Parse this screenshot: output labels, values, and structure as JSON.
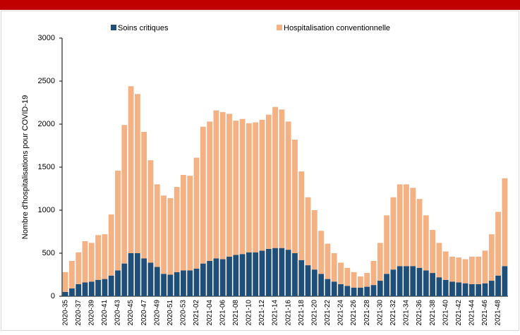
{
  "chart_data": {
    "type": "stacked_bar",
    "y_label": "Nombre d'hospitalisations pour COVID-19",
    "categories": [
      "2020-35",
      null,
      "2020-37",
      null,
      "2020-39",
      null,
      "2020-41",
      null,
      "2020-43",
      null,
      "2020-45",
      null,
      "2020-47",
      null,
      "2020-49",
      null,
      "2020-51",
      null,
      "2020-53",
      null,
      "2021-02",
      null,
      "2021-04",
      null,
      "2021-06",
      null,
      "2021-08",
      null,
      "2021-10",
      null,
      "2021-12",
      null,
      "2021-14",
      null,
      "2021-16",
      null,
      "2021-18",
      null,
      "2021-20",
      null,
      "2021-22",
      null,
      "2021-24",
      null,
      "2021-26",
      null,
      "2021-28",
      null,
      "2021-30",
      null,
      "2021-32",
      null,
      "2021-34",
      null,
      "2021-36",
      null,
      "2021-38",
      null,
      "2021-40",
      null,
      "2021-42",
      null,
      "2021-44",
      null,
      "2021-46",
      null,
      "2021-48",
      null
    ],
    "series": [
      {
        "name": "Soins critiques",
        "color": "#1f4e79",
        "values": [
          50,
          90,
          140,
          160,
          170,
          190,
          200,
          240,
          300,
          380,
          500,
          500,
          440,
          390,
          340,
          260,
          250,
          280,
          300,
          300,
          320,
          380,
          410,
          440,
          430,
          460,
          480,
          490,
          510,
          510,
          530,
          550,
          560,
          560,
          540,
          500,
          420,
          360,
          310,
          260,
          200,
          170,
          140,
          120,
          100,
          100,
          110,
          130,
          180,
          260,
          310,
          350,
          350,
          350,
          330,
          300,
          270,
          220,
          190,
          170,
          160,
          150,
          140,
          140,
          150,
          180,
          240,
          350
        ]
      },
      {
        "name": "Hospitalisation conventionnelle",
        "color": "#f4b183",
        "values": [
          230,
          320,
          370,
          480,
          450,
          520,
          520,
          710,
          1160,
          1610,
          1940,
          1850,
          1470,
          1190,
          960,
          910,
          890,
          990,
          1110,
          1100,
          1290,
          1590,
          1620,
          1720,
          1710,
          1660,
          1560,
          1570,
          1500,
          1510,
          1520,
          1560,
          1640,
          1610,
          1490,
          1320,
          1030,
          790,
          690,
          500,
          410,
          330,
          250,
          210,
          180,
          130,
          160,
          280,
          440,
          680,
          840,
          950,
          950,
          910,
          800,
          640,
          500,
          400,
          330,
          290,
          290,
          280,
          320,
          320,
          380,
          540,
          740,
          1020
        ]
      }
    ],
    "ylim": [
      0,
      3000
    ],
    "yticks": [
      0,
      500,
      1000,
      1500,
      2000,
      2500,
      3000
    ],
    "grid": false,
    "legend": "top"
  }
}
